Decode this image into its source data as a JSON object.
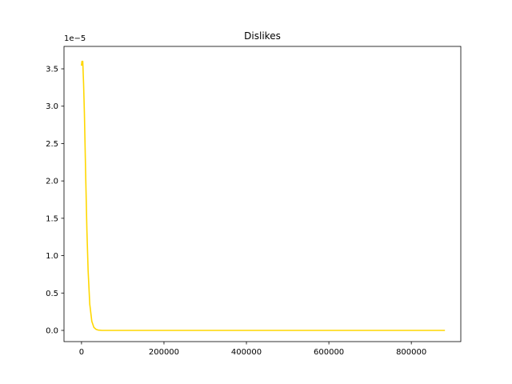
{
  "chart_data": {
    "type": "line",
    "title": "Dislikes",
    "xlabel": "",
    "ylabel": "",
    "y_multiplier_label": "1e−5",
    "xlim": [
      -42500,
      920000
    ],
    "ylim": [
      -0.15,
      3.8
    ],
    "x_ticks": [
      0,
      200000,
      400000,
      600000,
      800000
    ],
    "x_tick_labels": [
      "0",
      "200000",
      "400000",
      "600000",
      "800000"
    ],
    "y_ticks": [
      0.0,
      0.5,
      1.0,
      1.5,
      2.0,
      2.5,
      3.0,
      3.5
    ],
    "y_tick_labels": [
      "0.0",
      "0.5",
      "1.0",
      "1.5",
      "2.0",
      "2.5",
      "3.0",
      "3.5"
    ],
    "grid": false,
    "legend": "none",
    "series": [
      {
        "color": "#ffd700",
        "x": [
          0,
          1000,
          2000,
          3000,
          4000,
          5000,
          7000,
          10000,
          13000,
          16000,
          20000,
          25000,
          30000,
          35000,
          40000,
          50000,
          80000,
          150000,
          300000,
          500000,
          700000,
          880000
        ],
        "y": [
          3.55,
          3.6,
          3.55,
          3.6,
          3.45,
          3.3,
          2.9,
          2.1,
          1.35,
          0.8,
          0.35,
          0.12,
          0.04,
          0.015,
          0.005,
          0.0,
          0.0,
          0.0,
          0.0,
          0.0,
          0.0,
          0.0
        ]
      }
    ]
  }
}
